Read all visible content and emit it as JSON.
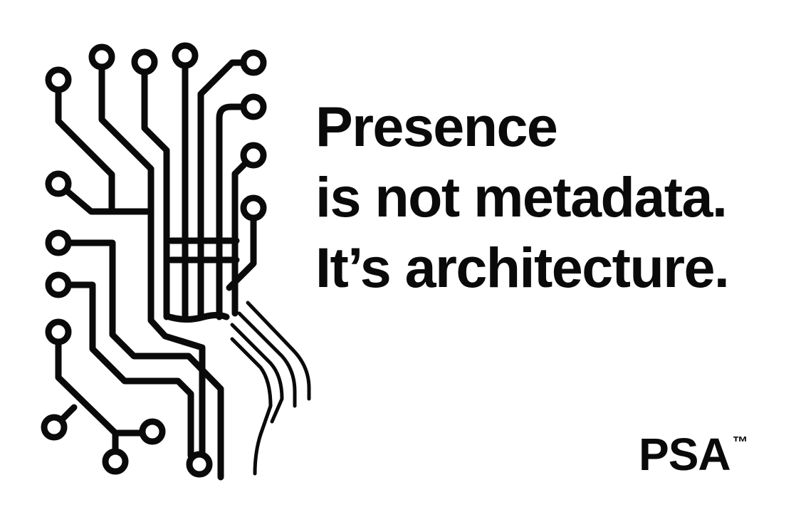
{
  "headline": {
    "line1": "Presence",
    "line2": "is not metadata.",
    "line3": "It’s architecture."
  },
  "brand": {
    "name": "PSA",
    "trademark": "™"
  },
  "colors": {
    "ink": "#0a0a0a",
    "background": "#ffffff"
  },
  "graphic": {
    "icon": "circuit-board-hand-icon"
  }
}
